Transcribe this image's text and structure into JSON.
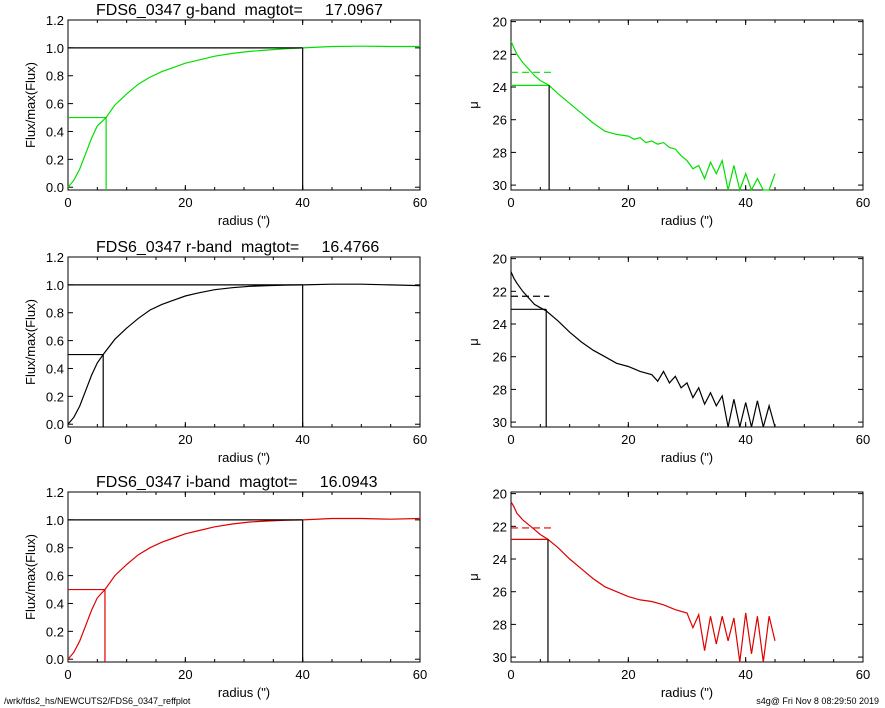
{
  "footer": {
    "path": "/wrk/fds2_hs/NEWCUTS2/FDS6_0347_reffplot",
    "stamp": "s4g@  Fri Nov  8 08:29:50 2019"
  },
  "chart_data": [
    {
      "type": "line",
      "title": "FDS6_0347 g-band  magtot=     17.0967",
      "xlabel": "radius (\")",
      "ylabel": "Flux/max(Flux)",
      "xlim": [
        0,
        60
      ],
      "ylim": [
        -0.02,
        1.2
      ],
      "xticks": [
        0,
        20,
        40,
        60
      ],
      "yticks": [
        0.0,
        0.2,
        0.4,
        0.6,
        0.8,
        1.0,
        1.2
      ],
      "ytick_decimals": 1,
      "color": "#00e000",
      "series": [
        {
          "x": [
            0,
            1,
            2,
            3,
            4,
            5,
            6.5,
            8,
            10,
            12,
            14,
            16,
            18,
            20,
            22,
            25,
            28,
            31,
            34,
            37,
            40,
            45,
            50,
            55,
            60
          ],
          "values": [
            0.0,
            0.05,
            0.13,
            0.24,
            0.35,
            0.44,
            0.5,
            0.59,
            0.67,
            0.74,
            0.79,
            0.83,
            0.86,
            0.89,
            0.91,
            0.94,
            0.96,
            0.975,
            0.985,
            0.993,
            1.0,
            1.01,
            1.012,
            1.01,
            1.01
          ]
        }
      ],
      "markers": {
        "half_light_x": 6.5,
        "half_light_y": 0.5,
        "total_x": 40,
        "total_y": 1.0
      }
    },
    {
      "type": "line",
      "xlabel": "radius (\")",
      "ylabel": "μ",
      "xlim": [
        0,
        60
      ],
      "ylim": [
        30.3,
        19.9
      ],
      "xticks": [
        0,
        20,
        40,
        60
      ],
      "yticks": [
        20,
        22,
        24,
        26,
        28,
        30
      ],
      "ytick_decimals": 0,
      "color": "#00e000",
      "series": [
        {
          "x": [
            0,
            0.5,
            1,
            2,
            3,
            4,
            5,
            6.5,
            8,
            10,
            12,
            14,
            16,
            18,
            20,
            21,
            22,
            23,
            24,
            25,
            26,
            27,
            28,
            29,
            30,
            31,
            32,
            33,
            34,
            35,
            36,
            37,
            38,
            39,
            40,
            41,
            42,
            43,
            44,
            45
          ],
          "values": [
            21.2,
            21.6,
            22.0,
            22.5,
            22.9,
            23.3,
            23.6,
            23.9,
            24.4,
            25.0,
            25.6,
            26.2,
            26.7,
            26.9,
            27.0,
            27.2,
            27.1,
            27.4,
            27.3,
            27.5,
            27.4,
            27.7,
            27.8,
            28.2,
            28.5,
            29.0,
            28.8,
            29.6,
            28.6,
            29.3,
            28.5,
            30.3,
            28.8,
            30.3,
            29.3,
            30.3,
            29.6,
            30.3,
            30.3,
            29.3
          ]
        }
      ],
      "markers": {
        "half_light_x": 6.5,
        "half_light_y": 23.9,
        "mean_mu": 23.1,
        "mean_mu_xrange": [
          0,
          6.5
        ]
      }
    },
    {
      "type": "line",
      "title": "FDS6_0347 r-band  magtot=     16.4766",
      "xlabel": "radius (\")",
      "ylabel": "Flux/max(Flux)",
      "xlim": [
        0,
        60
      ],
      "ylim": [
        -0.02,
        1.2
      ],
      "xticks": [
        0,
        20,
        40,
        60
      ],
      "yticks": [
        0.0,
        0.2,
        0.4,
        0.6,
        0.8,
        1.0,
        1.2
      ],
      "ytick_decimals": 1,
      "color": "#000000",
      "series": [
        {
          "x": [
            0,
            1,
            2,
            3,
            4,
            5,
            6,
            8,
            10,
            12,
            14,
            16,
            18,
            20,
            22,
            25,
            28,
            31,
            34,
            37,
            40,
            45,
            50,
            55,
            60
          ],
          "values": [
            0.0,
            0.05,
            0.13,
            0.24,
            0.35,
            0.44,
            0.5,
            0.61,
            0.69,
            0.76,
            0.82,
            0.86,
            0.89,
            0.92,
            0.94,
            0.965,
            0.98,
            0.99,
            0.995,
            0.998,
            1.0,
            1.005,
            1.005,
            1.0,
            0.995
          ]
        }
      ],
      "markers": {
        "half_light_x": 6,
        "half_light_y": 0.5,
        "total_x": 40,
        "total_y": 1.0
      }
    },
    {
      "type": "line",
      "xlabel": "radius (\")",
      "ylabel": "μ",
      "xlim": [
        0,
        60
      ],
      "ylim": [
        30.3,
        19.9
      ],
      "xticks": [
        0,
        20,
        40,
        60
      ],
      "yticks": [
        20,
        22,
        24,
        26,
        28,
        30
      ],
      "ytick_decimals": 0,
      "color": "#000000",
      "series": [
        {
          "x": [
            0,
            0.5,
            1,
            2,
            3,
            4,
            5,
            6,
            8,
            10,
            12,
            14,
            16,
            18,
            20,
            22,
            24,
            25,
            26,
            27,
            28,
            29,
            30,
            31,
            32,
            33,
            34,
            35,
            36,
            37,
            38,
            39,
            40,
            41,
            42,
            43,
            44,
            45
          ],
          "values": [
            20.8,
            21.2,
            21.5,
            22.0,
            22.4,
            22.8,
            23.0,
            23.2,
            23.8,
            24.5,
            25.1,
            25.6,
            26.0,
            26.4,
            26.6,
            26.9,
            27.1,
            27.5,
            26.9,
            27.6,
            27.2,
            27.9,
            27.6,
            28.5,
            27.9,
            28.9,
            28.2,
            29.0,
            28.4,
            30.3,
            28.6,
            30.3,
            28.8,
            30.3,
            28.7,
            30.3,
            29.0,
            30.3
          ]
        }
      ],
      "markers": {
        "half_light_x": 6,
        "half_light_y": 23.1,
        "mean_mu": 22.3,
        "mean_mu_xrange": [
          0,
          6
        ]
      }
    },
    {
      "type": "line",
      "title": "FDS6_0347 i-band  magtot=     16.0943",
      "xlabel": "radius (\")",
      "ylabel": "Flux/max(Flux)",
      "xlim": [
        0,
        60
      ],
      "ylim": [
        -0.02,
        1.2
      ],
      "xticks": [
        0,
        20,
        40,
        60
      ],
      "yticks": [
        0.0,
        0.2,
        0.4,
        0.6,
        0.8,
        1.0,
        1.2
      ],
      "ytick_decimals": 1,
      "color": "#e00000",
      "series": [
        {
          "x": [
            0,
            1,
            2,
            3,
            4,
            5,
            6.3,
            8,
            10,
            12,
            14,
            16,
            18,
            20,
            22,
            25,
            28,
            31,
            34,
            37,
            40,
            45,
            50,
            55,
            60
          ],
          "values": [
            0.0,
            0.05,
            0.13,
            0.24,
            0.35,
            0.44,
            0.5,
            0.6,
            0.68,
            0.75,
            0.8,
            0.84,
            0.87,
            0.9,
            0.92,
            0.95,
            0.97,
            0.985,
            0.992,
            0.997,
            1.0,
            1.01,
            1.01,
            1.005,
            1.01
          ]
        }
      ],
      "markers": {
        "half_light_x": 6.3,
        "half_light_y": 0.5,
        "total_x": 40,
        "total_y": 1.0
      }
    },
    {
      "type": "line",
      "xlabel": "radius (\")",
      "ylabel": "μ",
      "xlim": [
        0,
        60
      ],
      "ylim": [
        30.3,
        19.9
      ],
      "xticks": [
        0,
        20,
        40,
        60
      ],
      "yticks": [
        20,
        22,
        24,
        26,
        28,
        30
      ],
      "ytick_decimals": 0,
      "color": "#e00000",
      "series": [
        {
          "x": [
            0,
            0.5,
            1,
            2,
            3,
            4,
            5,
            6.3,
            8,
            10,
            12,
            14,
            16,
            18,
            20,
            22,
            24,
            26,
            28,
            30,
            31,
            32,
            33,
            34,
            35,
            36,
            37,
            38,
            39,
            40,
            41,
            42,
            43,
            44,
            45
          ],
          "values": [
            20.5,
            20.8,
            21.2,
            21.6,
            21.9,
            22.2,
            22.5,
            22.8,
            23.3,
            24.0,
            24.6,
            25.2,
            25.7,
            26.0,
            26.3,
            26.5,
            26.6,
            26.8,
            27.1,
            27.3,
            28.2,
            27.4,
            29.6,
            27.5,
            29.2,
            27.5,
            29.0,
            27.6,
            30.3,
            27.3,
            29.8,
            27.5,
            30.3,
            27.5,
            29.0
          ]
        }
      ],
      "markers": {
        "half_light_x": 6.3,
        "half_light_y": 22.8,
        "mean_mu": 22.1,
        "mean_mu_xrange": [
          0,
          6.3
        ]
      }
    }
  ]
}
